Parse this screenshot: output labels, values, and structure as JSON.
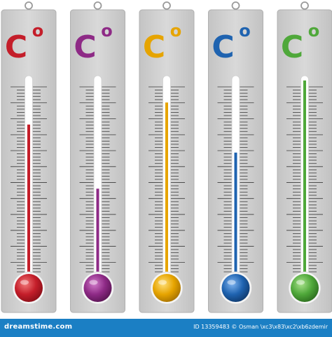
{
  "thermometers": [
    {
      "symbol": "C",
      "degree": "o",
      "color": "#c41e2a",
      "bulb_light": "#f27a7a",
      "bulb_dark": "#8a0f18",
      "level_fraction": 0.77
    },
    {
      "symbol": "C",
      "degree": "o",
      "color": "#8e2a86",
      "bulb_light": "#d27ccb",
      "bulb_dark": "#5a1554",
      "level_fraction": 0.45
    },
    {
      "symbol": "C",
      "degree": "o",
      "color": "#e6a400",
      "bulb_light": "#ffe07a",
      "bulb_dark": "#a67200",
      "level_fraction": 0.88
    },
    {
      "symbol": "C",
      "degree": "o",
      "color": "#1f63b0",
      "bulb_light": "#7fb4f0",
      "bulb_dark": "#0f3a6e",
      "level_fraction": 0.63
    },
    {
      "symbol": "C",
      "degree": "o",
      "color": "#4fa83a",
      "bulb_light": "#a9e28c",
      "bulb_dark": "#2d6e1f",
      "level_fraction": 0.99
    }
  ],
  "footer": {
    "brand": "dreamstime.com",
    "credit": "ID 13359483 © Osman \\xc3\\x83\\xc2\\xb6zdemir"
  }
}
